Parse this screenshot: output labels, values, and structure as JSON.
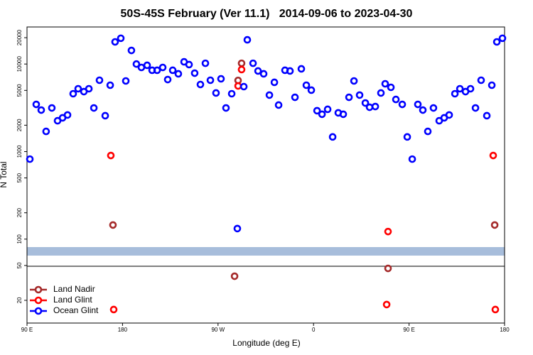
{
  "chart_data": {
    "type": "scatter",
    "title": "50S-45S February (Ver 11.1)   2014-09-06 to 2023-04-30",
    "x_label": "Longitude (deg E)",
    "y_label": "N Total",
    "log_y": true,
    "legend": "bottom-left",
    "xlim": [
      90,
      540
    ],
    "xticks": [
      {
        "value": 90,
        "label": "90 E"
      },
      {
        "value": 180,
        "label": "180"
      },
      {
        "value": 270,
        "label": "90 W"
      },
      {
        "value": 360,
        "label": "0"
      },
      {
        "value": 450,
        "label": "90 E"
      },
      {
        "value": 540,
        "label": "180"
      }
    ],
    "ylim": [
      11,
      26500
    ],
    "yticks": [
      20,
      50,
      100,
      200,
      500,
      1000,
      2000,
      5000,
      10000,
      20000
    ],
    "series": [
      {
        "name": "Land Nadir",
        "color": "#a52a2a",
        "x": [
          171,
          288.9,
          292.2,
          285.6,
          430.2,
          530.7
        ],
        "values": [
          145,
          6500,
          10200,
          37.7,
          46.3,
          145
        ]
      },
      {
        "name": "Land Glint",
        "color": "#ff0000",
        "x": [
          169,
          288.9,
          292.2,
          171.7,
          430.2,
          428.9,
          529.3,
          531.3
        ],
        "values": [
          902,
          5620,
          8650,
          15.7,
          122,
          17.9,
          902,
          15.7
        ]
      },
      {
        "name": "Ocean Glint",
        "color": "#0000ff",
        "x": [
          92.7,
          98.7,
          103.4,
          108,
          113.4,
          118.8,
          123.5,
          128.2,
          133.5,
          138.2,
          143.6,
          148.3,
          153,
          158.3,
          163.7,
          168.4,
          173,
          178.4,
          183.1,
          188.4,
          193.1,
          197.8,
          203.2,
          207.9,
          212.6,
          217.9,
          222.6,
          227.3,
          232.6,
          238,
          242.7,
          248,
          253.4,
          258.1,
          262.8,
          268.1,
          272.8,
          277.5,
          282.9,
          288.2,
          294.3,
          297.6,
          303,
          307.7,
          313,
          318.4,
          323.1,
          327.1,
          333.1,
          337.8,
          342.5,
          348.5,
          353.2,
          357.9,
          363.3,
          368,
          373.3,
          378,
          383.3,
          388,
          393.4,
          398.1,
          403.4,
          408.8,
          412.8,
          418.2,
          423.5,
          427.5,
          432.9,
          437.6,
          443.6,
          448.3,
          453,
          458.3,
          463,
          467.7,
          473,
          478.4,
          483.1,
          487.8,
          493.2,
          497.9,
          503.2,
          507.9,
          512.6,
          517.9,
          523.3,
          528,
          532.7,
          538
        ],
        "values": [
          820,
          3460,
          2980,
          1700,
          3150,
          2250,
          2430,
          2620,
          4580,
          5220,
          4840,
          5220,
          3150,
          6530,
          2570,
          5730,
          17900,
          19700,
          6410,
          14300,
          10000,
          9140,
          9670,
          8490,
          8490,
          9140,
          6650,
          8490,
          7730,
          10600,
          9860,
          7870,
          5840,
          10200,
          6530,
          4670,
          6780,
          3150,
          4580,
          132,
          5520,
          18900,
          10200,
          8330,
          7730,
          4420,
          6180,
          3400,
          8490,
          8330,
          4170,
          8810,
          5730,
          5030,
          2930,
          2670,
          3040,
          1470,
          2770,
          2670,
          4170,
          6410,
          4420,
          3590,
          3210,
          3270,
          4670,
          5950,
          5420,
          3940,
          3460,
          1470,
          820,
          3460,
          2980,
          1700,
          3150,
          2250,
          2430,
          2620,
          4580,
          5220,
          4840,
          5220,
          3150,
          6530,
          2570,
          5730,
          17900,
          19700
        ]
      }
    ]
  }
}
